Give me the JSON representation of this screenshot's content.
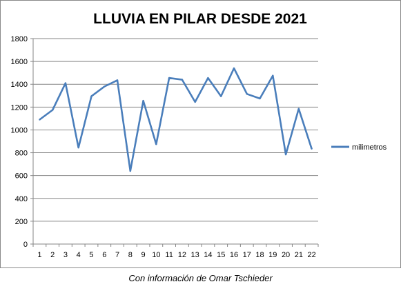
{
  "chart_data": {
    "type": "line",
    "title": "LLUVIA EN PILAR DESDE 2021",
    "xlabel": "",
    "ylabel": "",
    "x": [
      1,
      2,
      3,
      4,
      5,
      6,
      7,
      8,
      9,
      10,
      11,
      12,
      13,
      14,
      15,
      16,
      17,
      18,
      19,
      20,
      21,
      22
    ],
    "categories": [
      "1",
      "2",
      "3",
      "4",
      "5",
      "6",
      "7",
      "8",
      "9",
      "10",
      "11",
      "12",
      "13",
      "14",
      "15",
      "16",
      "17",
      "18",
      "19",
      "20",
      "21",
      "22"
    ],
    "series": [
      {
        "name": "milimetros",
        "color": "#4a7ebb",
        "values": [
          1090,
          1175,
          1410,
          845,
          1295,
          1380,
          1435,
          640,
          1255,
          875,
          1455,
          1440,
          1245,
          1455,
          1295,
          1540,
          1315,
          1275,
          1475,
          785,
          1185,
          835
        ]
      }
    ],
    "ylim": [
      0,
      1800
    ],
    "yticks": [
      0,
      200,
      400,
      600,
      800,
      1000,
      1200,
      1400,
      1600,
      1800
    ],
    "ytick_labels": [
      "0",
      "200",
      "400",
      "600",
      "800",
      "1000",
      "1200",
      "1400",
      "1600",
      "1800"
    ],
    "grid": true,
    "legend_position": "right"
  },
  "caption": "Con información de Omar Tschieder"
}
